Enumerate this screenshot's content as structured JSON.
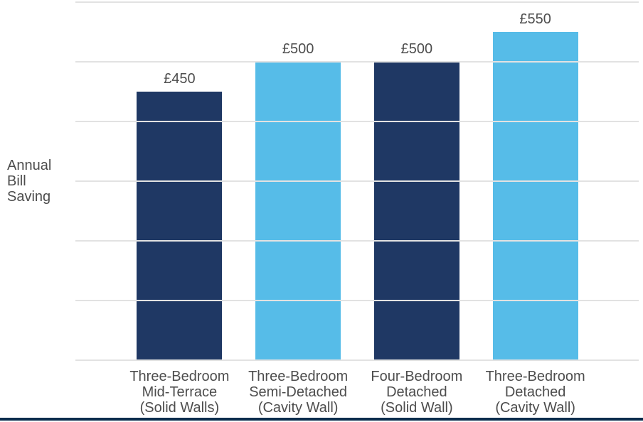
{
  "chart_data": {
    "type": "bar",
    "title": "",
    "y_axis_label": "Annual\nBill\nSaving",
    "categories": [
      "Three-Bedroom\nMid-Terrace\n(Solid Walls)",
      "Three-Bedroom\nSemi-Detached\n(Cavity Wall)",
      "Four-Bedroom\nDetached\n(Solid Wall)",
      "Three-Bedroom\nDetached\n(Cavity Wall)"
    ],
    "values": [
      450,
      500,
      500,
      550
    ],
    "value_labels": [
      "£450",
      "£500",
      "£500",
      "£550"
    ],
    "bar_colors": [
      "#1F3864",
      "#56BCE8",
      "#1F3864",
      "#56BCE8"
    ],
    "ylim": [
      0,
      600
    ],
    "gridline_step": 100,
    "grid": true,
    "legend": "none",
    "y_tick_labels_shown": false
  },
  "colors": {
    "dark_bar": "#1F3864",
    "light_bar": "#56BCE8",
    "gridline": "#E2E2E2",
    "text": "#4D4D4D",
    "bottom_rule": "#092C4C",
    "background": "#FFFFFF"
  }
}
